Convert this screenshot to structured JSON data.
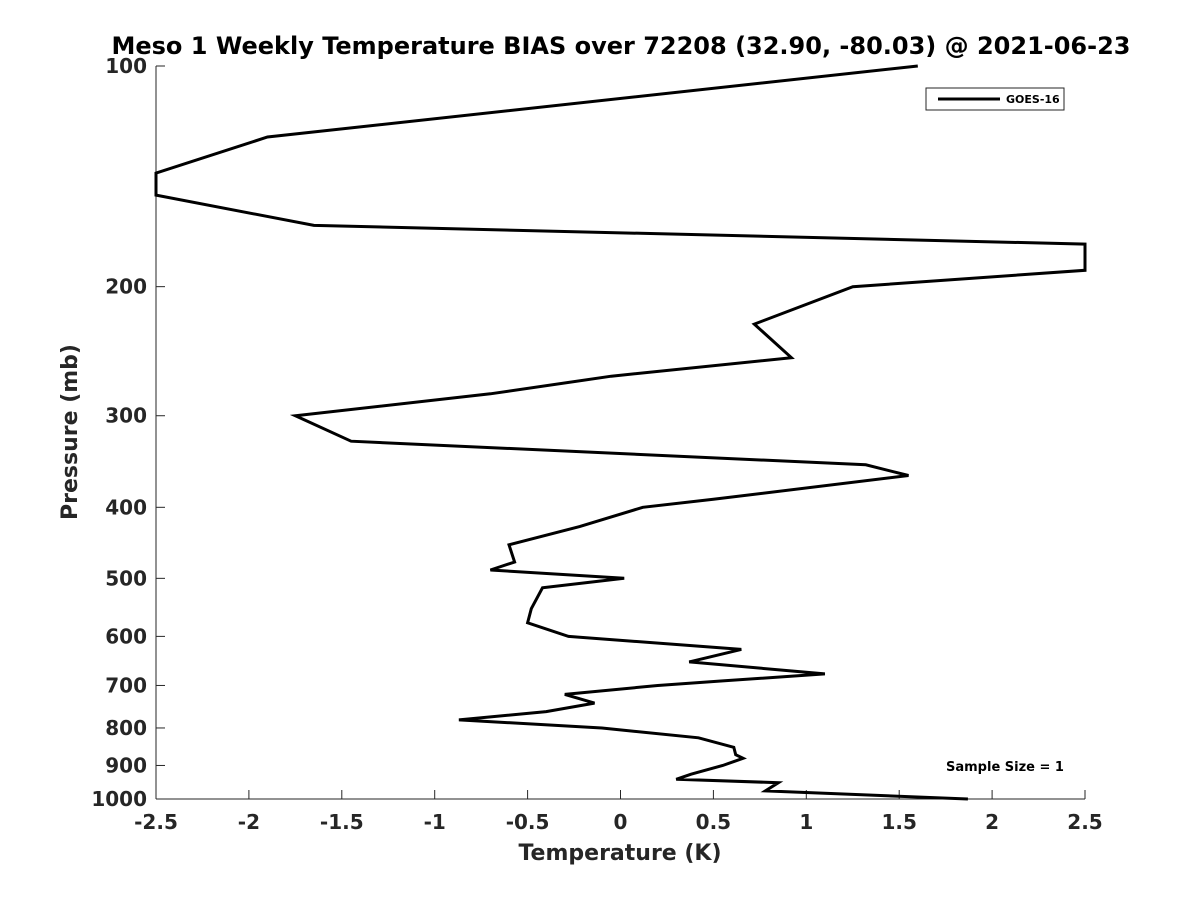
{
  "chart_data": {
    "type": "line",
    "title": "Meso 1 Weekly Temperature BIAS over 72208 (32.90, -80.03) @ 2021-06-23",
    "xlabel": "Temperature (K)",
    "ylabel": "Pressure (mb)",
    "xlim": [
      -2.5,
      2.5
    ],
    "ylim": [
      100,
      1000
    ],
    "y_scale": "log",
    "y_direction": "reversed",
    "x_ticks": [
      "-2.5",
      "-2",
      "-1.5",
      "-1",
      "-0.5",
      "0",
      "0.5",
      "1",
      "1.5",
      "2",
      "2.5"
    ],
    "x_tick_values": [
      -2.5,
      -2,
      -1.5,
      -1,
      -0.5,
      0,
      0.5,
      1,
      1.5,
      2,
      2.5
    ],
    "y_ticks": [
      "100",
      "200",
      "300",
      "400",
      "500",
      "600",
      "700",
      "800",
      "900",
      "1000"
    ],
    "y_tick_values": [
      100,
      200,
      300,
      400,
      500,
      600,
      700,
      800,
      900,
      1000
    ],
    "grid": false,
    "legend_position": "top-right",
    "series": [
      {
        "name": "GOES-16",
        "color": "#000000",
        "points": [
          {
            "x": 1.6,
            "p": 100
          },
          {
            "x": -1.9,
            "p": 125
          },
          {
            "x": -2.5,
            "p": 140
          },
          {
            "x": -2.5,
            "p": 150
          },
          {
            "x": -1.65,
            "p": 165
          },
          {
            "x": 2.5,
            "p": 175
          },
          {
            "x": 2.5,
            "p": 190
          },
          {
            "x": 1.25,
            "p": 200
          },
          {
            "x": 0.72,
            "p": 225
          },
          {
            "x": 0.92,
            "p": 250
          },
          {
            "x": -0.05,
            "p": 265
          },
          {
            "x": -0.7,
            "p": 280
          },
          {
            "x": -1.75,
            "p": 300
          },
          {
            "x": -1.45,
            "p": 325
          },
          {
            "x": 1.32,
            "p": 350
          },
          {
            "x": 1.55,
            "p": 362
          },
          {
            "x": 0.5,
            "p": 390
          },
          {
            "x": 0.12,
            "p": 400
          },
          {
            "x": -0.22,
            "p": 425
          },
          {
            "x": -0.6,
            "p": 450
          },
          {
            "x": -0.57,
            "p": 475
          },
          {
            "x": -0.7,
            "p": 487
          },
          {
            "x": 0.02,
            "p": 500
          },
          {
            "x": -0.42,
            "p": 515
          },
          {
            "x": -0.48,
            "p": 550
          },
          {
            "x": -0.5,
            "p": 575
          },
          {
            "x": -0.28,
            "p": 600
          },
          {
            "x": 0.65,
            "p": 625
          },
          {
            "x": 0.37,
            "p": 650
          },
          {
            "x": 1.1,
            "p": 675
          },
          {
            "x": 0.55,
            "p": 690
          },
          {
            "x": 0.2,
            "p": 700
          },
          {
            "x": -0.3,
            "p": 720
          },
          {
            "x": -0.14,
            "p": 740
          },
          {
            "x": -0.4,
            "p": 760
          },
          {
            "x": -0.87,
            "p": 780
          },
          {
            "x": -0.1,
            "p": 800
          },
          {
            "x": 0.42,
            "p": 825
          },
          {
            "x": 0.61,
            "p": 850
          },
          {
            "x": 0.62,
            "p": 870
          },
          {
            "x": 0.66,
            "p": 880
          },
          {
            "x": 0.55,
            "p": 900
          },
          {
            "x": 0.38,
            "p": 925
          },
          {
            "x": 0.3,
            "p": 940
          },
          {
            "x": 0.85,
            "p": 950
          },
          {
            "x": 0.78,
            "p": 975
          },
          {
            "x": 1.87,
            "p": 1000
          }
        ]
      }
    ],
    "annotations": [
      "Sample Size = 1"
    ]
  }
}
